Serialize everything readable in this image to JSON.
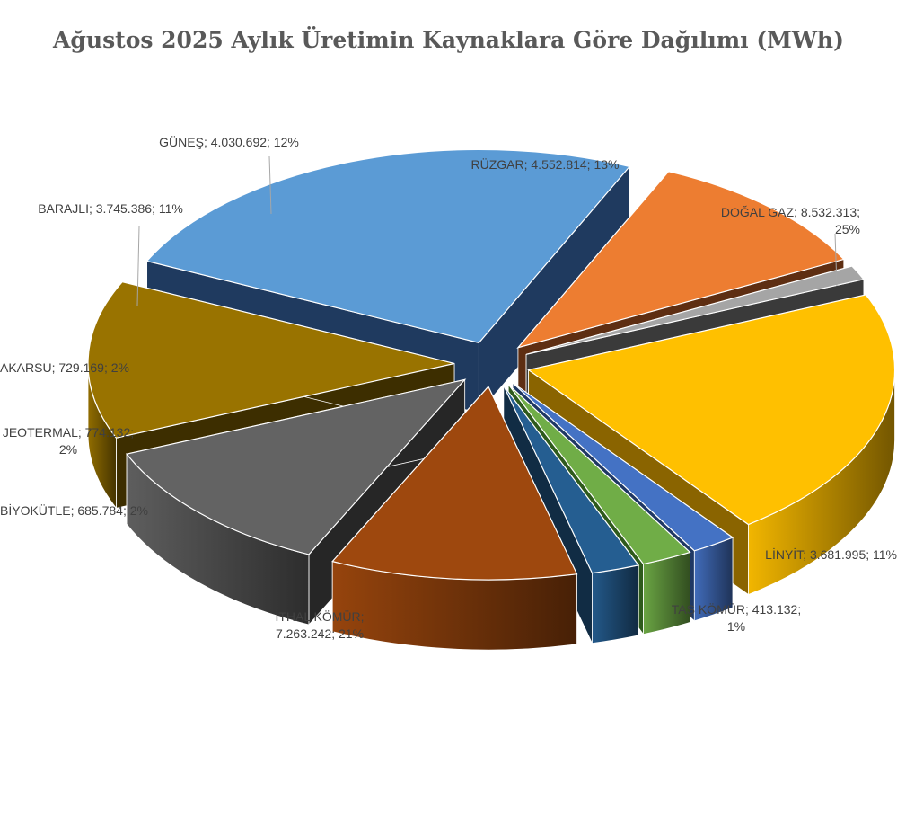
{
  "chart_data": {
    "type": "pie",
    "title": "Ağustos 2025 Aylık Üretimin Kaynaklara Göre Dağılımı (MWh)",
    "series": [
      {
        "name": "DOĞAL GAZ",
        "value": 8532313,
        "value_label": "8.532.313",
        "percent": "25%",
        "color": "#5B9BD5",
        "side": "#1F3A5F"
      },
      {
        "name": "LİNYİT",
        "value": 3681995,
        "value_label": "3.681.995",
        "percent": "11%",
        "color": "#ED7D31",
        "side": "#5E2E12"
      },
      {
        "name": "TAŞ KÖMÜR",
        "value": 413132,
        "value_label": "413.132",
        "percent": "1%",
        "color": "#A5A5A5",
        "side": "#3A3A3A"
      },
      {
        "name": "İTHAL KÖMÜR",
        "value": 7263242,
        "value_label": "7.263.242",
        "percent": "21%",
        "color": "#FFC000",
        "side": "#8A6400"
      },
      {
        "name": "BİYOKÜTLE",
        "value": 685784,
        "value_label": "685.784",
        "percent": "2%",
        "color": "#4472C4",
        "side": "#1F3864"
      },
      {
        "name": "JEOTERMAL",
        "value": 774132,
        "value_label": "774.132",
        "percent": "2%",
        "color": "#70AD47",
        "side": "#2E5A1C"
      },
      {
        "name": "AKARSU",
        "value": 729169,
        "value_label": "729.169",
        "percent": "2%",
        "color": "#255E91",
        "side": "#112C44"
      },
      {
        "name": "BARAJLI",
        "value": 3745386,
        "value_label": "3.745.386",
        "percent": "11%",
        "color": "#9E480E",
        "side": "#3E1C05"
      },
      {
        "name": "GÜNEŞ",
        "value": 4030692,
        "value_label": "4.030.692",
        "percent": "12%",
        "color": "#636363",
        "side": "#262626"
      },
      {
        "name": "RÜZGAR",
        "value": 4552814,
        "value_label": "4.552.814",
        "percent": "13%",
        "color": "#997300",
        "side": "#3D2E00"
      }
    ],
    "labels": [
      {
        "lines": [
          "DOĞAL GAZ; 8.532.313;",
          "25%"
        ]
      },
      {
        "lines": [
          "LİNYİT; 3.681.995; 11%"
        ]
      },
      {
        "lines": [
          "TAŞ KÖMÜR; 413.132;",
          "1%"
        ]
      },
      {
        "lines": [
          "İTHAL KÖMÜR;",
          "7.263.242; 21%"
        ]
      },
      {
        "lines": [
          "BİYOKÜTLE; 685.784; 2%"
        ]
      },
      {
        "lines": [
          "JEOTERMAL; 774.132;",
          "2%"
        ]
      },
      {
        "lines": [
          "AKARSU; 729.169; 2%"
        ]
      },
      {
        "lines": [
          "BARAJLI; 3.745.386; 11%"
        ]
      },
      {
        "lines": [
          "GÜNEŞ; 4.030.692; 12%"
        ]
      },
      {
        "lines": [
          "RÜZGAR; 4.552.814; 13%"
        ]
      }
    ],
    "legend": "none"
  }
}
